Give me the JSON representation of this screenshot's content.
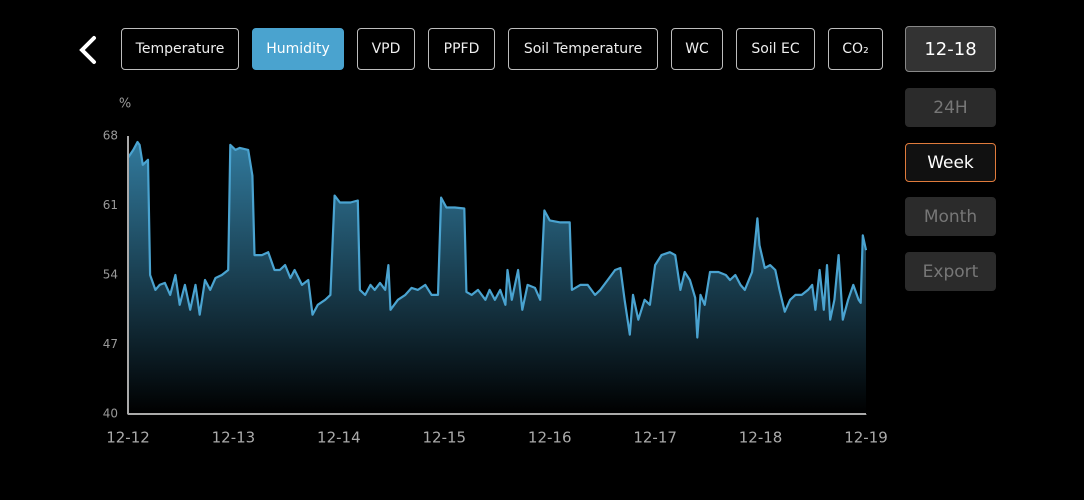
{
  "tabs": [
    "Temperature",
    "Humidity",
    "VPD",
    "PPFD",
    "Soil Temperature",
    "WC",
    "Soil EC",
    "CO₂"
  ],
  "active_tab": 1,
  "date_button": "12-18",
  "range_buttons": [
    "24H",
    "Week",
    "Month"
  ],
  "active_range": 1,
  "export_button": "Export",
  "chart_data": {
    "type": "area",
    "y_unit": "%",
    "color": "#4aa3d0",
    "ylim": [
      40,
      68
    ],
    "yticks": [
      40,
      47,
      54,
      61,
      68
    ],
    "xlim": [
      0,
      7
    ],
    "xticks": [
      {
        "value": 0,
        "label": "12-12"
      },
      {
        "value": 1,
        "label": "12-13"
      },
      {
        "value": 2,
        "label": "12-14"
      },
      {
        "value": 3,
        "label": "12-15"
      },
      {
        "value": 4,
        "label": "12-16"
      },
      {
        "value": 5,
        "label": "12-17"
      },
      {
        "value": 6,
        "label": "12-18"
      },
      {
        "value": 7,
        "label": "12-19"
      }
    ],
    "series": [
      {
        "name": "Humidity",
        "x": [
          0,
          0.05,
          0.09,
          0.11,
          0.14,
          0.19,
          0.21,
          0.26,
          0.3,
          0.35,
          0.4,
          0.45,
          0.49,
          0.54,
          0.59,
          0.64,
          0.68,
          0.73,
          0.78,
          0.83,
          0.89,
          0.95,
          0.97,
          1.02,
          1.06,
          1.14,
          1.18,
          1.2,
          1.27,
          1.33,
          1.39,
          1.44,
          1.49,
          1.54,
          1.58,
          1.65,
          1.71,
          1.75,
          1.8,
          1.87,
          1.92,
          1.96,
          2.01,
          2.11,
          2.18,
          2.2,
          2.25,
          2.3,
          2.34,
          2.39,
          2.44,
          2.47,
          2.49,
          2.56,
          2.63,
          2.69,
          2.75,
          2.82,
          2.88,
          2.94,
          2.97,
          3.02,
          3.1,
          3.19,
          3.21,
          3.26,
          3.32,
          3.39,
          3.43,
          3.48,
          3.53,
          3.58,
          3.6,
          3.64,
          3.7,
          3.74,
          3.79,
          3.86,
          3.91,
          3.95,
          4.0,
          4.1,
          4.19,
          4.21,
          4.29,
          4.36,
          4.43,
          4.48,
          4.55,
          4.62,
          4.67,
          4.71,
          4.76,
          4.79,
          4.84,
          4.9,
          4.95,
          5.0,
          5.06,
          5.14,
          5.19,
          5.24,
          5.28,
          5.33,
          5.38,
          5.4,
          5.43,
          5.47,
          5.52,
          5.6,
          5.67,
          5.71,
          5.76,
          5.81,
          5.85,
          5.92,
          5.97,
          5.99,
          6.04,
          6.09,
          6.14,
          6.18,
          6.23,
          6.28,
          6.33,
          6.39,
          6.45,
          6.49,
          6.52,
          6.56,
          6.6,
          6.63,
          6.66,
          6.7,
          6.74,
          6.78,
          6.83,
          6.88,
          6.93,
          6.95,
          6.97,
          7
        ],
        "values": [
          65.8,
          66.6,
          67.4,
          67.1,
          65.1,
          65.6,
          54,
          52.5,
          53,
          53.2,
          52,
          54,
          51,
          53,
          50.5,
          53,
          50,
          53.5,
          52.5,
          53.7,
          54,
          54.5,
          67.1,
          66.6,
          66.8,
          66.6,
          64,
          56,
          56,
          56.3,
          54.5,
          54.5,
          55,
          53.7,
          54.5,
          53,
          53.5,
          50,
          51,
          51.5,
          52,
          62,
          61.3,
          61.3,
          61.5,
          52.5,
          52,
          53,
          52.5,
          53.2,
          52.5,
          55,
          50.5,
          51.5,
          52,
          52.7,
          52.5,
          53,
          52,
          52,
          61.8,
          60.8,
          60.8,
          60.7,
          52.3,
          52,
          52.5,
          51.5,
          52.5,
          51.5,
          52.5,
          51,
          54.5,
          51.5,
          54.5,
          50.5,
          53,
          52.7,
          51.5,
          60.5,
          59.5,
          59.3,
          59.3,
          52.5,
          53,
          53,
          52,
          52.5,
          53.5,
          54.5,
          54.7,
          51.5,
          48,
          52,
          49.5,
          51.5,
          51,
          55,
          56,
          56.3,
          56,
          52.5,
          54.3,
          53.5,
          51.7,
          47.7,
          52,
          51,
          54.3,
          54.3,
          54,
          53.5,
          54,
          53,
          52.5,
          54.3,
          59.7,
          57,
          54.7,
          55,
          54.5,
          52.5,
          50.3,
          51.5,
          52,
          52,
          52.5,
          53,
          50.5,
          54.5,
          50.5,
          55,
          49.5,
          51.5,
          56,
          49.5,
          51.5,
          53,
          51.5,
          51.2,
          58,
          56.5
        ]
      }
    ]
  }
}
